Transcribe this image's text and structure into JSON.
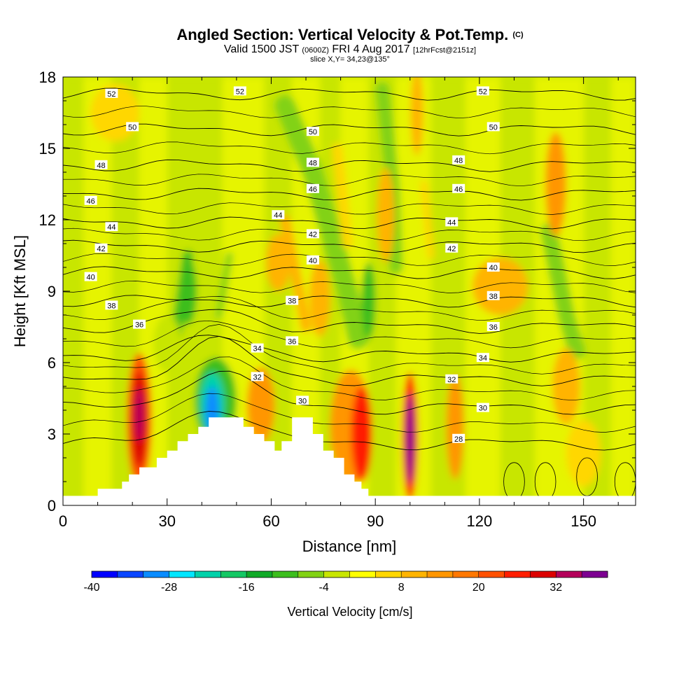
{
  "title": {
    "main": "Angled Section: Vertical Velocity & Pot.Temp.",
    "main_unit": "(C)",
    "valid_prefix": "Valid 1500 JST",
    "valid_utc": "(0600Z)",
    "valid_date": "FRI 4 Aug 2017",
    "forecast": "[12hrFcst@2151z]",
    "slice": "slice X,Y= 34,23@135°"
  },
  "chart_data": {
    "type": "heatmap",
    "xlabel": "Distance [nm]",
    "ylabel": "Height [Kft MSL]",
    "xlim": [
      0,
      165
    ],
    "ylim": [
      0,
      18
    ],
    "x_ticks": [
      0,
      30,
      60,
      90,
      120,
      150
    ],
    "y_ticks": [
      0,
      3,
      6,
      9,
      12,
      15,
      18
    ],
    "colorbar": {
      "label": "Vertical Velocity [cm/s]",
      "min": -40,
      "max": 40,
      "step": 4,
      "tick_values": [
        -40,
        -28,
        -16,
        -4,
        8,
        20,
        32
      ],
      "colors": [
        "#0000ff",
        "#0a46ff",
        "#0a8cff",
        "#00e6ff",
        "#00d2aa",
        "#14c864",
        "#10aa28",
        "#3cbe1e",
        "#82d214",
        "#c8e600",
        "#ffff00",
        "#ffd700",
        "#ffb400",
        "#ff9600",
        "#ff7800",
        "#ff5000",
        "#ff1e00",
        "#dc0000",
        "#b4005a",
        "#7d0091"
      ]
    },
    "theta_contours": {
      "unit": "C",
      "levels": [
        28,
        30,
        32,
        34,
        36,
        38,
        40,
        42,
        44,
        46,
        48,
        50,
        52
      ],
      "label_positions": [
        {
          "level": 52,
          "x": 14,
          "y": 17.3
        },
        {
          "level": 52,
          "x": 51,
          "y": 17.4
        },
        {
          "level": 52,
          "x": 121,
          "y": 17.4
        },
        {
          "level": 50,
          "x": 20,
          "y": 15.9
        },
        {
          "level": 50,
          "x": 72,
          "y": 15.7
        },
        {
          "level": 50,
          "x": 124,
          "y": 15.9
        },
        {
          "level": 48,
          "x": 11,
          "y": 14.3
        },
        {
          "level": 48,
          "x": 72,
          "y": 14.4
        },
        {
          "level": 48,
          "x": 114,
          "y": 14.5
        },
        {
          "level": 46,
          "x": 8,
          "y": 12.8
        },
        {
          "level": 46,
          "x": 72,
          "y": 13.3
        },
        {
          "level": 46,
          "x": 114,
          "y": 13.3
        },
        {
          "level": 44,
          "x": 14,
          "y": 11.7
        },
        {
          "level": 44,
          "x": 62,
          "y": 12.2
        },
        {
          "level": 44,
          "x": 112,
          "y": 11.9
        },
        {
          "level": 42,
          "x": 11,
          "y": 10.8
        },
        {
          "level": 42,
          "x": 72,
          "y": 11.4
        },
        {
          "level": 42,
          "x": 112,
          "y": 10.8
        },
        {
          "level": 40,
          "x": 8,
          "y": 9.6
        },
        {
          "level": 40,
          "x": 72,
          "y": 10.3
        },
        {
          "level": 40,
          "x": 124,
          "y": 10.0
        },
        {
          "level": 38,
          "x": 14,
          "y": 8.4
        },
        {
          "level": 38,
          "x": 66,
          "y": 8.6
        },
        {
          "level": 38,
          "x": 124,
          "y": 8.8
        },
        {
          "level": 36,
          "x": 22,
          "y": 7.6
        },
        {
          "level": 36,
          "x": 66,
          "y": 6.9
        },
        {
          "level": 36,
          "x": 124,
          "y": 7.5
        },
        {
          "level": 34,
          "x": 56,
          "y": 6.6
        },
        {
          "level": 34,
          "x": 121,
          "y": 6.2
        },
        {
          "level": 32,
          "x": 56,
          "y": 5.4
        },
        {
          "level": 32,
          "x": 112,
          "y": 5.3
        },
        {
          "level": 30,
          "x": 69,
          "y": 4.4
        },
        {
          "level": 30,
          "x": 121,
          "y": 4.1
        },
        {
          "level": 28,
          "x": 114,
          "y": 2.8
        }
      ]
    },
    "velocity_cells": [
      {
        "x": 22,
        "y": 3.6,
        "rx": 3.5,
        "ry": 2.8,
        "w": 20
      },
      {
        "x": 22,
        "y": 3.6,
        "rx": 2.3,
        "ry": 2.0,
        "w": 28
      },
      {
        "x": 22,
        "y": 3.8,
        "rx": 1.2,
        "ry": 1.1,
        "w": 34
      },
      {
        "x": 44,
        "y": 4.4,
        "rx": 6,
        "ry": 1.8,
        "w": -12
      },
      {
        "x": 43,
        "y": 4.3,
        "rx": 3.5,
        "ry": 1.3,
        "w": -24
      },
      {
        "x": 43,
        "y": 4.0,
        "rx": 2.0,
        "ry": 1.0,
        "w": -32
      },
      {
        "x": 57,
        "y": 4.2,
        "rx": 4,
        "ry": 1.6,
        "w": 12
      },
      {
        "x": 83,
        "y": 3.3,
        "rx": 6,
        "ry": 2.4,
        "w": 12
      },
      {
        "x": 86,
        "y": 3.0,
        "rx": 3,
        "ry": 2.0,
        "w": 24
      },
      {
        "x": 100,
        "y": 2.9,
        "rx": 2.2,
        "ry": 2.7,
        "w": 24
      },
      {
        "x": 100,
        "y": 2.8,
        "rx": 1.2,
        "ry": 1.9,
        "w": 36
      },
      {
        "x": 113,
        "y": 3.3,
        "rx": 2.5,
        "ry": 2.2,
        "w": 12
      },
      {
        "x": 36,
        "y": 9.0,
        "rx": 2.5,
        "ry": 1.4,
        "w": -12
      },
      {
        "x": 62,
        "y": 10.2,
        "rx": 3.5,
        "ry": 1.2,
        "w": 10
      },
      {
        "x": 74,
        "y": 8.7,
        "rx": 3.0,
        "ry": 1.6,
        "w": 8
      },
      {
        "x": 88,
        "y": 8.6,
        "rx": 2.0,
        "ry": 1.6,
        "w": -10
      },
      {
        "x": 93,
        "y": 12.2,
        "rx": 2.5,
        "ry": 2.0,
        "w": 10
      },
      {
        "x": 102,
        "y": 16.5,
        "rx": 1.8,
        "ry": 1.8,
        "w": 10
      },
      {
        "x": 142,
        "y": 13.5,
        "rx": 3.0,
        "ry": 2.2,
        "w": 12
      },
      {
        "x": 126,
        "y": 9.2,
        "rx": 8,
        "ry": 1.2,
        "w": 10
      },
      {
        "x": 15,
        "y": 16.5,
        "rx": 7,
        "ry": 1.2,
        "w": 4
      },
      {
        "x": 30,
        "y": 6.8,
        "rx": 4,
        "ry": 1.2,
        "w": -4
      },
      {
        "x": 145,
        "y": 5.0,
        "rx": 4,
        "ry": 1.6,
        "w": 8
      },
      {
        "x": 150,
        "y": 2.2,
        "rx": 5,
        "ry": 1.4,
        "w": 4
      }
    ],
    "velocity_streaks": [
      {
        "points": [
          [
            64,
            16.8
          ],
          [
            72,
            14.0
          ],
          [
            82,
            9.0
          ],
          [
            85,
            7.0
          ]
        ],
        "width": 6,
        "w": -8
      },
      {
        "points": [
          [
            92,
            17.5
          ],
          [
            95,
            13.5
          ],
          [
            96,
            10.0
          ]
        ],
        "width": 4,
        "w": -8
      },
      {
        "points": [
          [
            140,
            11.5
          ],
          [
            145,
            8.0
          ],
          [
            148,
            6.5
          ]
        ],
        "width": 5,
        "w": -6
      },
      {
        "points": [
          [
            36,
            10.5
          ],
          [
            34,
            8.5
          ],
          [
            32,
            6.5
          ]
        ],
        "width": 3,
        "w": -10
      },
      {
        "points": [
          [
            48,
            10.5
          ],
          [
            45,
            8.0
          ]
        ],
        "width": 2,
        "w": -8
      },
      {
        "points": [
          [
            64,
            12.0
          ],
          [
            70,
            7.5
          ]
        ],
        "width": 3,
        "w": 8
      },
      {
        "points": [
          [
            79,
            15.0
          ],
          [
            82,
            11.0
          ]
        ],
        "width": 3,
        "w": 6
      },
      {
        "points": [
          [
            104,
            13.5
          ],
          [
            106,
            10.5
          ]
        ],
        "width": 2,
        "w": 6
      }
    ],
    "terrain_kft": [
      [
        0,
        0.4
      ],
      [
        10,
        0.4
      ],
      [
        10,
        0.7
      ],
      [
        17,
        0.7
      ],
      [
        17,
        1.0
      ],
      [
        19,
        1.0
      ],
      [
        19,
        1.3
      ],
      [
        22,
        1.3
      ],
      [
        22,
        1.6
      ],
      [
        27,
        1.6
      ],
      [
        27,
        2.0
      ],
      [
        30,
        2.0
      ],
      [
        30,
        2.3
      ],
      [
        33,
        2.3
      ],
      [
        33,
        2.7
      ],
      [
        36,
        2.7
      ],
      [
        36,
        3.0
      ],
      [
        39,
        3.0
      ],
      [
        39,
        3.3
      ],
      [
        42,
        3.3
      ],
      [
        42,
        3.7
      ],
      [
        52,
        3.7
      ],
      [
        52,
        3.3
      ],
      [
        55,
        3.3
      ],
      [
        55,
        3.0
      ],
      [
        58,
        3.0
      ],
      [
        58,
        2.7
      ],
      [
        61,
        2.7
      ],
      [
        61,
        2.3
      ],
      [
        63,
        2.3
      ],
      [
        63,
        2.7
      ],
      [
        66,
        2.7
      ],
      [
        66,
        3.7
      ],
      [
        72,
        3.7
      ],
      [
        72,
        3.0
      ],
      [
        75,
        3.0
      ],
      [
        75,
        2.3
      ],
      [
        78,
        2.3
      ],
      [
        78,
        2.0
      ],
      [
        81,
        2.0
      ],
      [
        81,
        1.3
      ],
      [
        84,
        1.3
      ],
      [
        84,
        1.0
      ],
      [
        86,
        1.0
      ],
      [
        86,
        0.7
      ],
      [
        88,
        0.7
      ],
      [
        88,
        0.4
      ],
      [
        165,
        0.4
      ],
      [
        165,
        0
      ],
      [
        0,
        0
      ]
    ]
  }
}
